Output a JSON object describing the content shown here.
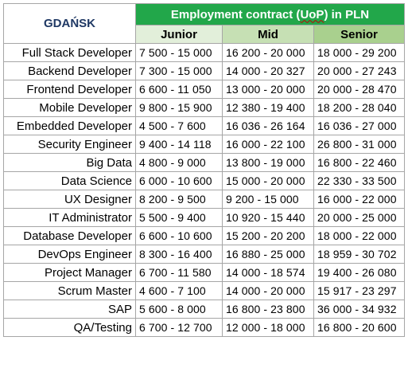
{
  "city": "GDAŃSK",
  "contract_title": {
    "prefix": "Employment contract (",
    "uop": "UoP",
    "suffix": ") in PLN"
  },
  "levels": [
    "Junior",
    "Mid",
    "Senior"
  ],
  "colors": {
    "title_bg": "#22a74a",
    "junior_bg": "#e2efda",
    "mid_bg": "#c6e0b4",
    "senior_bg": "#a9d08e",
    "city_text": "#1f3864",
    "grid": "#a6a6a6"
  },
  "rows": [
    {
      "role": "Full Stack Developer",
      "junior": "7 500 - 15 000",
      "mid": "16 200 - 20 000",
      "senior": "18 000 - 29 200"
    },
    {
      "role": "Backend Developer",
      "junior": "7 300 - 15 000",
      "mid": "14 000 - 20 327",
      "senior": "20 000 - 27 243"
    },
    {
      "role": "Frontend Developer",
      "junior": "6 600 - 11 050",
      "mid": "13 000 - 20 000",
      "senior": "20 000 - 28 470"
    },
    {
      "role": "Mobile Developer",
      "junior": "9 800 - 15 900",
      "mid": "12 380 - 19 400",
      "senior": "18 200 - 28 040"
    },
    {
      "role": "Embedded Developer",
      "junior": "4 500 - 7 600",
      "mid": "16 036 - 26 164",
      "senior": "16 036 - 27 000"
    },
    {
      "role": "Security Engineer",
      "junior": "9 400 - 14 118",
      "mid": "16 000 - 22 100",
      "senior": "26 800 - 31 000"
    },
    {
      "role": "Big Data",
      "junior": "4 800 - 9 000",
      "mid": "13 800 - 19 000",
      "senior": "16 800 - 22 460"
    },
    {
      "role": "Data Science",
      "junior": "6 000 - 10 600",
      "mid": "15 000 - 20 000",
      "senior": "22 330 - 33 500"
    },
    {
      "role": "UX Designer",
      "junior": "8 200 - 9 500",
      "mid": "9 200 - 15 000",
      "senior": "16 000 - 22 000"
    },
    {
      "role": "IT Administrator",
      "junior": "5 500 - 9 400",
      "mid": "10 920 - 15 440",
      "senior": "20 000 - 25 000"
    },
    {
      "role": "Database Developer",
      "junior": "6 600 - 10 600",
      "mid": "15 200 - 20 200",
      "senior": "18 000 - 22 000"
    },
    {
      "role": "DevOps Engineer",
      "junior": "8 300 - 16 400",
      "mid": "16 880 - 25 000",
      "senior": "18 959 - 30 702"
    },
    {
      "role": "Project Manager",
      "junior": "6 700 - 11 580",
      "mid": "14 000 - 18 574",
      "senior": "19 400 - 26 080"
    },
    {
      "role": "Scrum Master",
      "junior": "4 600 - 7 100",
      "mid": "14 000 - 20 000",
      "senior": "15 917 - 23 297"
    },
    {
      "role": "SAP",
      "junior": "5 600 - 8 000",
      "mid": "16 800 - 23 800",
      "senior": "36 000 - 34 932"
    },
    {
      "role": "QA/Testing",
      "junior": "6 700 - 12 700",
      "mid": "12 000 - 18 000",
      "senior": "16 800 - 20 600"
    }
  ]
}
